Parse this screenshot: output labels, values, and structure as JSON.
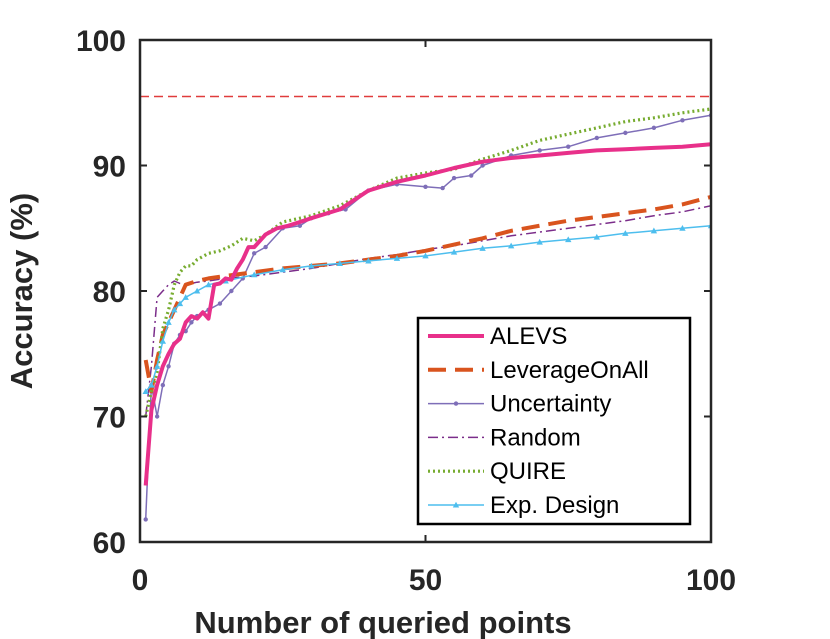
{
  "chart_data": {
    "type": "line",
    "title": "",
    "xlabel": "Number of queried points",
    "ylabel": "Accuracy (%)",
    "xlim": [
      0,
      100
    ],
    "ylim": [
      60,
      100
    ],
    "xticks": [
      0,
      50,
      100
    ],
    "yticks": [
      60,
      70,
      80,
      90,
      100
    ],
    "xtick_labels": [
      "0",
      "50",
      "100"
    ],
    "ytick_labels": [
      "60",
      "70",
      "80",
      "90",
      "100"
    ],
    "legend_position": "bottom-right",
    "reference_line": {
      "y": 95.5,
      "color": "#e03c3c",
      "style": "dashed"
    },
    "series": [
      {
        "name": "ALEVS",
        "color": "#e8308a",
        "style": "solid-thick",
        "x": [
          1,
          2,
          3,
          4,
          5,
          6,
          7,
          8,
          9,
          10,
          11,
          12,
          13,
          14,
          15,
          16,
          17,
          18,
          19,
          20,
          22,
          24,
          26,
          28,
          30,
          35,
          40,
          45,
          50,
          55,
          60,
          65,
          70,
          75,
          80,
          85,
          90,
          95,
          100
        ],
        "y": [
          64.5,
          70.5,
          72.5,
          74.0,
          75.0,
          75.8,
          76.2,
          77.5,
          78.0,
          77.8,
          78.3,
          77.8,
          80.5,
          80.6,
          81.0,
          80.9,
          81.8,
          82.5,
          83.5,
          83.5,
          84.5,
          85.0,
          85.2,
          85.5,
          85.8,
          86.5,
          88.0,
          88.7,
          89.2,
          89.8,
          90.3,
          90.6,
          90.8,
          91.0,
          91.2,
          91.3,
          91.4,
          91.5,
          91.7
        ]
      },
      {
        "name": "LeverageOnAll",
        "color": "#d9541e",
        "style": "dashed-thick",
        "x": [
          1,
          2,
          3,
          4,
          5,
          6,
          7,
          8,
          10,
          12,
          15,
          20,
          25,
          30,
          35,
          40,
          45,
          50,
          55,
          60,
          65,
          70,
          75,
          80,
          85,
          90,
          95,
          100
        ],
        "y": [
          74.5,
          72.0,
          74.5,
          76.5,
          77.5,
          78.5,
          79.5,
          80.5,
          80.8,
          81.0,
          81.2,
          81.5,
          81.8,
          82.0,
          82.2,
          82.5,
          82.8,
          83.2,
          83.7,
          84.2,
          84.8,
          85.2,
          85.6,
          85.9,
          86.2,
          86.5,
          86.9,
          87.5
        ]
      },
      {
        "name": "Uncertainty",
        "color": "#7e6eb8",
        "style": "solid-markers",
        "x": [
          1,
          2,
          3,
          4,
          5,
          6,
          7,
          8,
          9,
          10,
          12,
          14,
          16,
          18,
          20,
          22,
          25,
          28,
          30,
          33,
          36,
          40,
          45,
          50,
          53,
          55,
          58,
          60,
          65,
          70,
          75,
          80,
          85,
          90,
          95,
          100
        ],
        "y": [
          61.8,
          72.5,
          70.0,
          72.5,
          74.0,
          75.8,
          76.5,
          76.8,
          77.5,
          78.0,
          78.5,
          79.0,
          80.0,
          81.0,
          83.0,
          83.5,
          85.0,
          85.2,
          85.8,
          86.2,
          86.5,
          88.0,
          88.5,
          88.3,
          88.2,
          89.0,
          89.2,
          90.0,
          90.8,
          91.2,
          91.5,
          92.2,
          92.6,
          93.0,
          93.6,
          94.0
        ]
      },
      {
        "name": "Random",
        "color": "#7b2d8a",
        "style": "dashdot",
        "x": [
          1,
          2,
          3,
          4,
          5,
          6,
          7,
          8,
          10,
          12,
          15,
          20,
          25,
          30,
          35,
          40,
          45,
          50,
          55,
          60,
          65,
          70,
          75,
          80,
          85,
          90,
          95,
          100
        ],
        "y": [
          70.0,
          74.0,
          79.5,
          80.0,
          80.5,
          80.8,
          80.6,
          80.5,
          80.7,
          80.8,
          81.0,
          81.2,
          81.5,
          81.8,
          82.2,
          82.6,
          82.9,
          83.3,
          83.6,
          84.0,
          84.4,
          84.7,
          85.0,
          85.3,
          85.6,
          86.0,
          86.3,
          86.8
        ]
      },
      {
        "name": "QUIRE",
        "color": "#77ac30",
        "style": "dotted",
        "x": [
          1,
          2,
          3,
          4,
          5,
          6,
          7,
          8,
          9,
          10,
          12,
          14,
          16,
          18,
          20,
          22,
          25,
          30,
          35,
          40,
          45,
          50,
          55,
          60,
          65,
          70,
          75,
          80,
          85,
          90,
          95,
          100
        ],
        "y": [
          70.0,
          72.0,
          73.5,
          77.0,
          78.5,
          80.5,
          81.5,
          82.0,
          82.0,
          82.5,
          83.0,
          83.2,
          83.6,
          84.2,
          84.0,
          84.5,
          85.5,
          86.0,
          86.8,
          88.0,
          89.0,
          89.4,
          89.7,
          90.5,
          91.2,
          92.0,
          92.5,
          93.0,
          93.5,
          93.8,
          94.2,
          94.5
        ]
      },
      {
        "name": "Exp. Design",
        "color": "#4dbeee",
        "style": "solid-triangles",
        "x": [
          1,
          2,
          3,
          4,
          5,
          6,
          7,
          8,
          10,
          12,
          15,
          20,
          25,
          30,
          35,
          40,
          45,
          50,
          55,
          60,
          65,
          70,
          75,
          80,
          85,
          90,
          95,
          100
        ],
        "y": [
          72.0,
          72.5,
          74.0,
          76.0,
          77.5,
          78.5,
          79.0,
          79.5,
          80.0,
          80.5,
          80.8,
          81.3,
          81.7,
          82.0,
          82.2,
          82.4,
          82.6,
          82.8,
          83.1,
          83.4,
          83.6,
          83.9,
          84.1,
          84.3,
          84.6,
          84.8,
          85.0,
          85.2
        ]
      }
    ]
  }
}
